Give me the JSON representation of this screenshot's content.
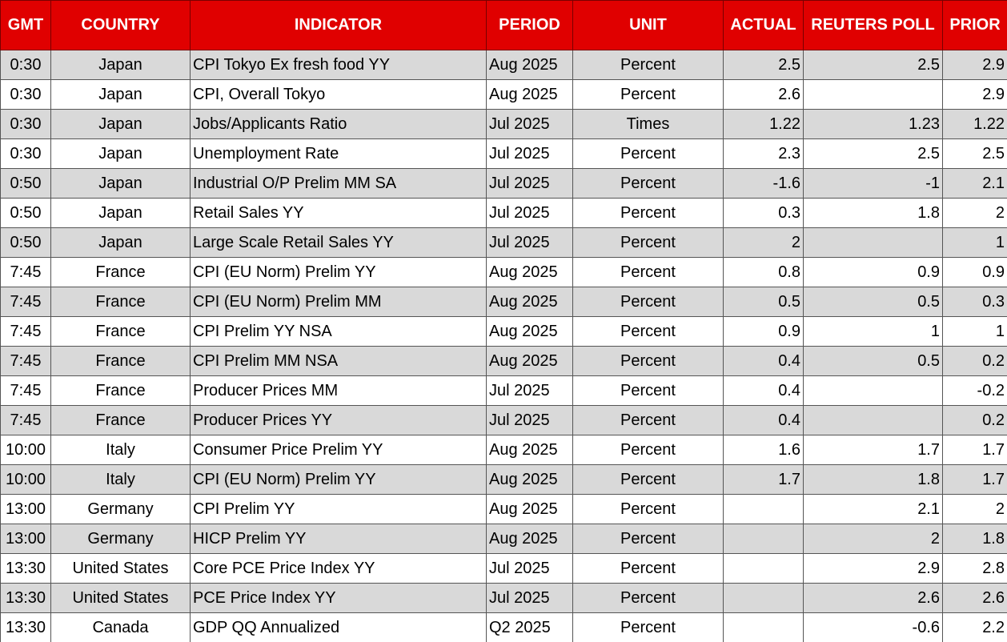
{
  "table": {
    "columns": [
      "GMT",
      "COUNTRY",
      "INDICATOR",
      "PERIOD",
      "UNIT",
      "ACTUAL",
      "REUTERS POLL",
      "PRIOR"
    ],
    "rows": [
      [
        "0:30",
        "Japan",
        "CPI Tokyo Ex fresh food YY",
        "Aug 2025",
        "Percent",
        "2.5",
        "2.5",
        "2.9"
      ],
      [
        "0:30",
        "Japan",
        "CPI, Overall Tokyo",
        "Aug 2025",
        "Percent",
        "2.6",
        null,
        "2.9"
      ],
      [
        "0:30",
        "Japan",
        "Jobs/Applicants Ratio",
        "Jul 2025",
        "Times",
        "1.22",
        "1.23",
        "1.22"
      ],
      [
        "0:30",
        "Japan",
        "Unemployment Rate",
        "Jul 2025",
        "Percent",
        "2.3",
        "2.5",
        "2.5"
      ],
      [
        "0:50",
        "Japan",
        "Industrial O/P Prelim MM SA",
        "Jul 2025",
        "Percent",
        "-1.6",
        "-1",
        "2.1"
      ],
      [
        "0:50",
        "Japan",
        "Retail Sales YY",
        "Jul 2025",
        "Percent",
        "0.3",
        "1.8",
        "2"
      ],
      [
        "0:50",
        "Japan",
        "Large Scale Retail Sales YY",
        "Jul 2025",
        "Percent",
        "2",
        null,
        "1"
      ],
      [
        "7:45",
        "France",
        "CPI (EU Norm) Prelim YY",
        "Aug 2025",
        "Percent",
        "0.8",
        "0.9",
        "0.9"
      ],
      [
        "7:45",
        "France",
        "CPI (EU Norm) Prelim MM",
        "Aug 2025",
        "Percent",
        "0.5",
        "0.5",
        "0.3"
      ],
      [
        "7:45",
        "France",
        "CPI Prelim YY NSA",
        "Aug 2025",
        "Percent",
        "0.9",
        "1",
        "1"
      ],
      [
        "7:45",
        "France",
        "CPI Prelim MM NSA",
        "Aug 2025",
        "Percent",
        "0.4",
        "0.5",
        "0.2"
      ],
      [
        "7:45",
        "France",
        "Producer Prices MM",
        "Jul 2025",
        "Percent",
        "0.4",
        null,
        "-0.2"
      ],
      [
        "7:45",
        "France",
        "Producer Prices YY",
        "Jul 2025",
        "Percent",
        "0.4",
        null,
        "0.2"
      ],
      [
        "10:00",
        "Italy",
        "Consumer Price Prelim YY",
        "Aug 2025",
        "Percent",
        "1.6",
        "1.7",
        "1.7"
      ],
      [
        "10:00",
        "Italy",
        "CPI (EU Norm) Prelim YY",
        "Aug 2025",
        "Percent",
        "1.7",
        "1.8",
        "1.7"
      ],
      [
        "13:00",
        "Germany",
        "CPI Prelim YY",
        "Aug 2025",
        "Percent",
        null,
        "2.1",
        "2"
      ],
      [
        "13:00",
        "Germany",
        "HICP Prelim YY",
        "Aug 2025",
        "Percent",
        null,
        "2",
        "1.8"
      ],
      [
        "13:30",
        "United States",
        "Core PCE Price Index YY",
        "Jul 2025",
        "Percent",
        null,
        "2.9",
        "2.8"
      ],
      [
        "13:30",
        "United States",
        "PCE Price Index YY",
        "Jul 2025",
        "Percent",
        null,
        "2.6",
        "2.6"
      ],
      [
        "13:30",
        "Canada",
        "GDP QQ Annualized",
        "Q2 2025",
        "Percent",
        null,
        "-0.6",
        "2.2"
      ]
    ]
  }
}
